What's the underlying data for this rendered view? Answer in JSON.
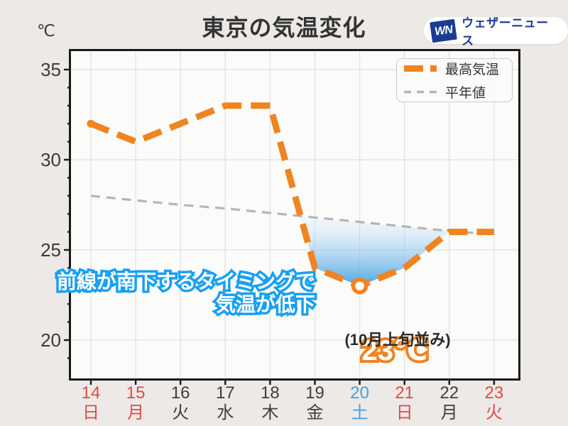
{
  "page": {
    "background": "#ECE9E6"
  },
  "header": {
    "title": "東京の気温変化",
    "unit_label": "℃"
  },
  "logo": {
    "monogram": "WN",
    "brand": "ウェザーニュース",
    "navy": "#1B3C96"
  },
  "legend": {
    "items": [
      {
        "label": "最高気温",
        "style": "thick-dash",
        "color": "#F08421"
      },
      {
        "label": "平年値",
        "style": "thin-dash",
        "color": "#B5B5B5"
      }
    ]
  },
  "annotations": {
    "front_note_line1": "前線が南下するタイミングで",
    "front_note_line2": "気温が低下",
    "min_temp_label": "23℃",
    "period_note": "(10月上旬並み)"
  },
  "colors": {
    "red": "#E14B44",
    "blue": "#41A1E8",
    "dark": "#3F3F3F",
    "orange": "#F08421",
    "gray_line": "#B5B5B5",
    "grid": "#E0E0E0",
    "frame": "#1A1A1A",
    "fill_blue": "#4EA5E2",
    "annotation_blue": "#18A0F2"
  },
  "chart_data": {
    "type": "line",
    "title": "東京の気温変化",
    "ylabel": "℃",
    "ylim": [
      17.9,
      36
    ],
    "yticks": [
      35,
      30,
      25,
      20
    ],
    "minor_tick_step": 1,
    "grid": true,
    "legend_position": "top-right",
    "categories_day": [
      "14",
      "15",
      "16",
      "17",
      "18",
      "19",
      "20",
      "21",
      "22",
      "23"
    ],
    "categories_weekday": [
      "日",
      "月",
      "火",
      "水",
      "木",
      "金",
      "土",
      "日",
      "月",
      "火"
    ],
    "day_color_keys": [
      "red",
      "red",
      "dark",
      "dark",
      "dark",
      "dark",
      "blue",
      "red",
      "dark",
      "red"
    ],
    "series": [
      {
        "name": "最高気温",
        "values": [
          32,
          31,
          32,
          33,
          33,
          24,
          23,
          24,
          26,
          26
        ],
        "color": "#F08421",
        "dash": "thick"
      },
      {
        "name": "平年値",
        "values": [
          28.0,
          27.75,
          27.5,
          27.3,
          27.05,
          26.8,
          26.55,
          26.3,
          26.05,
          25.85
        ],
        "color": "#B5B5B5",
        "dash": "thin"
      }
    ],
    "highlight": {
      "day": "20",
      "weekday": "土",
      "value": 23,
      "label": "23℃",
      "note": "(10月上旬並み)"
    },
    "shaded_region": "between 最高気温 and 平年値 where max temp is below normal (days 19-22)"
  }
}
